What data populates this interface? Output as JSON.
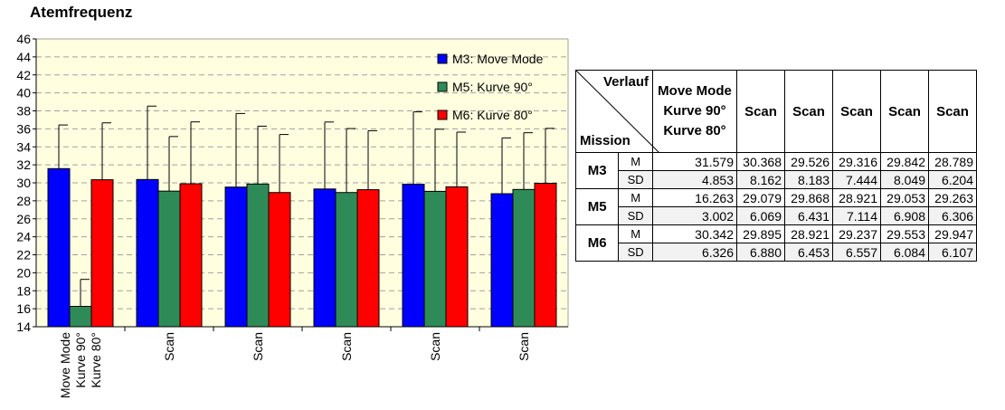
{
  "chart_data": {
    "type": "bar",
    "title": "Atemfrequenz",
    "ylim": [
      14,
      46
    ],
    "yticks": [
      14,
      16,
      18,
      20,
      22,
      24,
      26,
      28,
      30,
      32,
      34,
      36,
      38,
      40,
      42,
      44,
      46
    ],
    "grid": true,
    "legend_placement": "top-right",
    "categories": [
      [
        "Move Mode",
        "Kurve 90°",
        "Kurve 80°"
      ],
      [
        "Scan"
      ],
      [
        "Scan"
      ],
      [
        "Scan"
      ],
      [
        "Scan"
      ],
      [
        "Scan"
      ]
    ],
    "series": [
      {
        "name": "M3: Move Mode",
        "color": "#0000ff",
        "values": [
          31.579,
          30.368,
          29.526,
          29.316,
          29.842,
          28.789
        ],
        "errors": [
          4.853,
          8.162,
          8.183,
          7.444,
          8.049,
          6.204
        ]
      },
      {
        "name": "M5: Kurve 90°",
        "color": "#2e8b57",
        "values": [
          16.263,
          29.079,
          29.868,
          28.921,
          29.053,
          29.263
        ],
        "errors": [
          3.002,
          6.069,
          6.431,
          7.114,
          6.908,
          6.306
        ]
      },
      {
        "name": "M6: Kurve 80°",
        "color": "#ff0000",
        "values": [
          30.342,
          29.895,
          28.921,
          29.237,
          29.553,
          29.947
        ],
        "errors": [
          6.326,
          6.88,
          6.453,
          6.557,
          6.084,
          6.107
        ]
      }
    ]
  },
  "table": {
    "corner_top": "Verlauf",
    "corner_bottom": "Mission",
    "first_col_header": [
      "Move Mode",
      "Kurve 90°",
      "Kurve 80°"
    ],
    "scan_header": "Scan",
    "stat_m": "M",
    "stat_sd": "SD",
    "rows": [
      {
        "mission": "M3",
        "m": [
          "31.579",
          "30.368",
          "29.526",
          "29.316",
          "29.842",
          "28.789"
        ],
        "sd": [
          "4.853",
          "8.162",
          "8.183",
          "7.444",
          "8.049",
          "6.204"
        ]
      },
      {
        "mission": "M5",
        "m": [
          "16.263",
          "29.079",
          "29.868",
          "28.921",
          "29.053",
          "29.263"
        ],
        "sd": [
          "3.002",
          "6.069",
          "6.431",
          "7.114",
          "6.908",
          "6.306"
        ]
      },
      {
        "mission": "M6",
        "m": [
          "30.342",
          "29.895",
          "28.921",
          "29.237",
          "29.553",
          "29.947"
        ],
        "sd": [
          "6.326",
          "6.880",
          "6.453",
          "6.557",
          "6.084",
          "6.107"
        ]
      }
    ]
  }
}
